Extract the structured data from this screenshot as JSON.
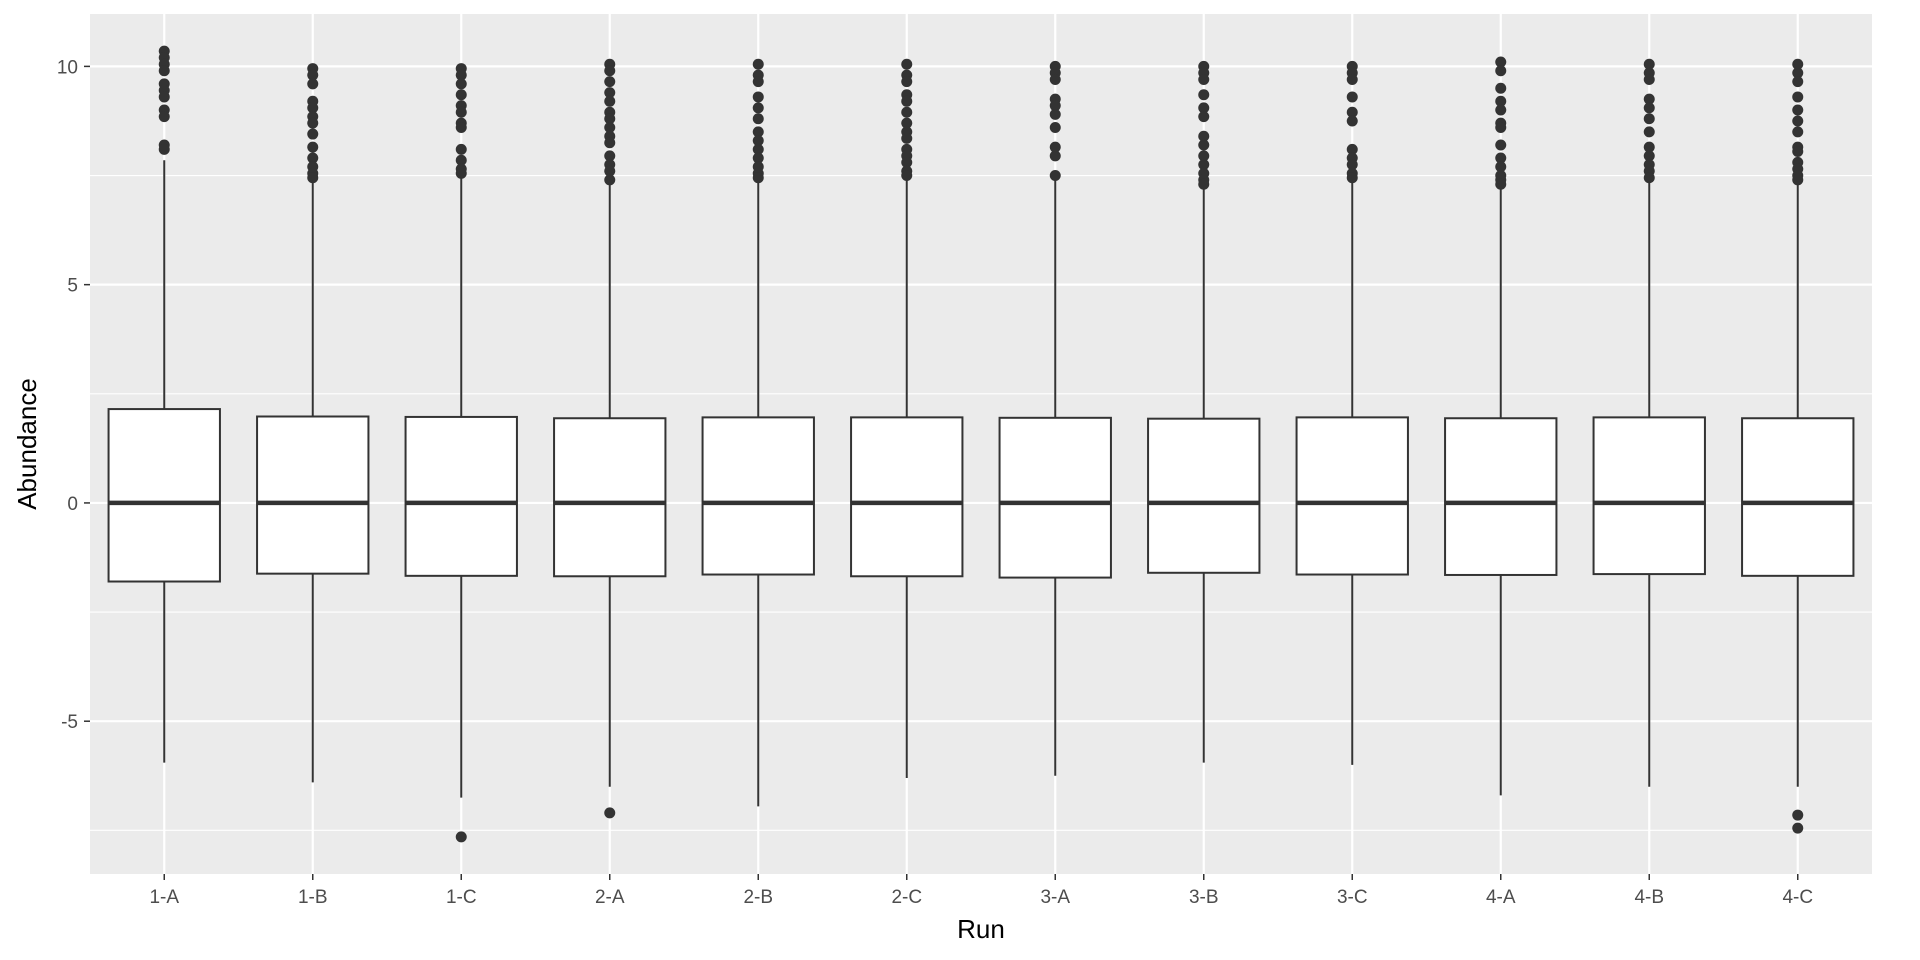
{
  "chart_data": {
    "type": "boxplot",
    "title": "",
    "xlabel": "Run",
    "ylabel": "Abundance",
    "ylim": [
      -8.5,
      11.2
    ],
    "y_ticks": [
      -5,
      0,
      5,
      10
    ],
    "y_tick_labels": [
      "-5",
      "0",
      "5",
      "10"
    ],
    "y_minor_ticks": [
      -7.5,
      -2.5,
      2.5,
      7.5
    ],
    "grid": true,
    "legend": "none",
    "colors": {
      "panel_background": "#ebebeb",
      "grid_line": "#ffffff",
      "box_fill": "#ffffff",
      "box_stroke": "#333333",
      "outlier": "#333333",
      "tick_label": "#4d4d4d",
      "axis_title": "#000000"
    },
    "categories": [
      "1-A",
      "1-B",
      "1-C",
      "2-A",
      "2-B",
      "2-C",
      "3-A",
      "3-B",
      "3-C",
      "4-A",
      "4-B",
      "4-C"
    ],
    "boxes": [
      {
        "category": "1-A",
        "whisker_low": -5.95,
        "q1": -1.8,
        "median": 0.0,
        "q3": 2.15,
        "whisker_high": 7.85,
        "outliers": [
          10.35,
          10.2,
          10.05,
          9.9,
          9.6,
          9.45,
          9.3,
          9.0,
          8.85,
          8.2,
          8.1
        ]
      },
      {
        "category": "1-B",
        "whisker_low": -6.4,
        "q1": -1.62,
        "median": 0.0,
        "q3": 1.98,
        "whisker_high": 7.4,
        "outliers": [
          9.95,
          9.8,
          9.6,
          9.2,
          9.05,
          8.85,
          8.7,
          8.45,
          8.15,
          7.9,
          7.7,
          7.55,
          7.45
        ]
      },
      {
        "category": "1-C",
        "whisker_low": -6.75,
        "q1": -1.67,
        "median": 0.0,
        "q3": 1.97,
        "whisker_high": 7.5,
        "outliers": [
          9.95,
          9.8,
          9.6,
          9.35,
          9.1,
          8.95,
          8.7,
          8.6,
          8.1,
          7.85,
          7.65,
          7.55,
          -7.65
        ]
      },
      {
        "category": "2-A",
        "whisker_low": -6.5,
        "q1": -1.68,
        "median": 0.0,
        "q3": 1.94,
        "whisker_high": 7.3,
        "outliers": [
          10.05,
          9.9,
          9.65,
          9.4,
          9.2,
          8.95,
          8.8,
          8.6,
          8.4,
          8.25,
          7.95,
          7.75,
          7.6,
          7.4,
          -7.1
        ]
      },
      {
        "category": "2-B",
        "whisker_low": -6.95,
        "q1": -1.64,
        "median": 0.0,
        "q3": 1.96,
        "whisker_high": 7.35,
        "outliers": [
          10.05,
          9.8,
          9.65,
          9.3,
          9.05,
          8.8,
          8.5,
          8.3,
          8.1,
          7.9,
          7.7,
          7.55,
          7.45
        ]
      },
      {
        "category": "2-C",
        "whisker_low": -6.3,
        "q1": -1.68,
        "median": 0.0,
        "q3": 1.96,
        "whisker_high": 7.4,
        "outliers": [
          10.05,
          9.8,
          9.65,
          9.35,
          9.2,
          8.95,
          8.7,
          8.5,
          8.35,
          8.1,
          7.95,
          7.8,
          7.6,
          7.5
        ]
      },
      {
        "category": "3-A",
        "whisker_low": -6.25,
        "q1": -1.71,
        "median": 0.0,
        "q3": 1.95,
        "whisker_high": 7.4,
        "outliers": [
          10.0,
          9.85,
          9.7,
          9.25,
          9.1,
          8.9,
          8.6,
          8.15,
          7.95,
          7.5
        ]
      },
      {
        "category": "3-B",
        "whisker_low": -5.95,
        "q1": -1.6,
        "median": 0.0,
        "q3": 1.93,
        "whisker_high": 7.2,
        "outliers": [
          10.0,
          9.85,
          9.7,
          9.35,
          9.05,
          8.85,
          8.4,
          8.2,
          7.95,
          7.75,
          7.55,
          7.4,
          7.3
        ]
      },
      {
        "category": "3-C",
        "whisker_low": -6.0,
        "q1": -1.64,
        "median": 0.0,
        "q3": 1.96,
        "whisker_high": 7.35,
        "outliers": [
          10.0,
          9.85,
          9.7,
          9.3,
          8.95,
          8.75,
          8.1,
          7.9,
          7.75,
          7.55,
          7.45
        ]
      },
      {
        "category": "4-A",
        "whisker_low": -6.7,
        "q1": -1.65,
        "median": 0.0,
        "q3": 1.94,
        "whisker_high": 7.3,
        "outliers": [
          10.1,
          9.9,
          9.5,
          9.2,
          9.0,
          8.7,
          8.6,
          8.2,
          7.9,
          7.7,
          7.5,
          7.4,
          7.3
        ]
      },
      {
        "category": "4-B",
        "whisker_low": -6.5,
        "q1": -1.63,
        "median": 0.0,
        "q3": 1.96,
        "whisker_high": 7.35,
        "outliers": [
          10.05,
          9.85,
          9.7,
          9.25,
          9.05,
          8.8,
          8.5,
          8.15,
          7.95,
          7.75,
          7.6,
          7.45
        ]
      },
      {
        "category": "4-C",
        "whisker_low": -6.5,
        "q1": -1.67,
        "median": 0.0,
        "q3": 1.94,
        "whisker_high": 7.4,
        "outliers": [
          10.05,
          9.85,
          9.65,
          9.3,
          9.0,
          8.75,
          8.5,
          8.15,
          8.05,
          7.8,
          7.65,
          7.5,
          7.4,
          -7.15,
          -7.45
        ]
      }
    ]
  }
}
